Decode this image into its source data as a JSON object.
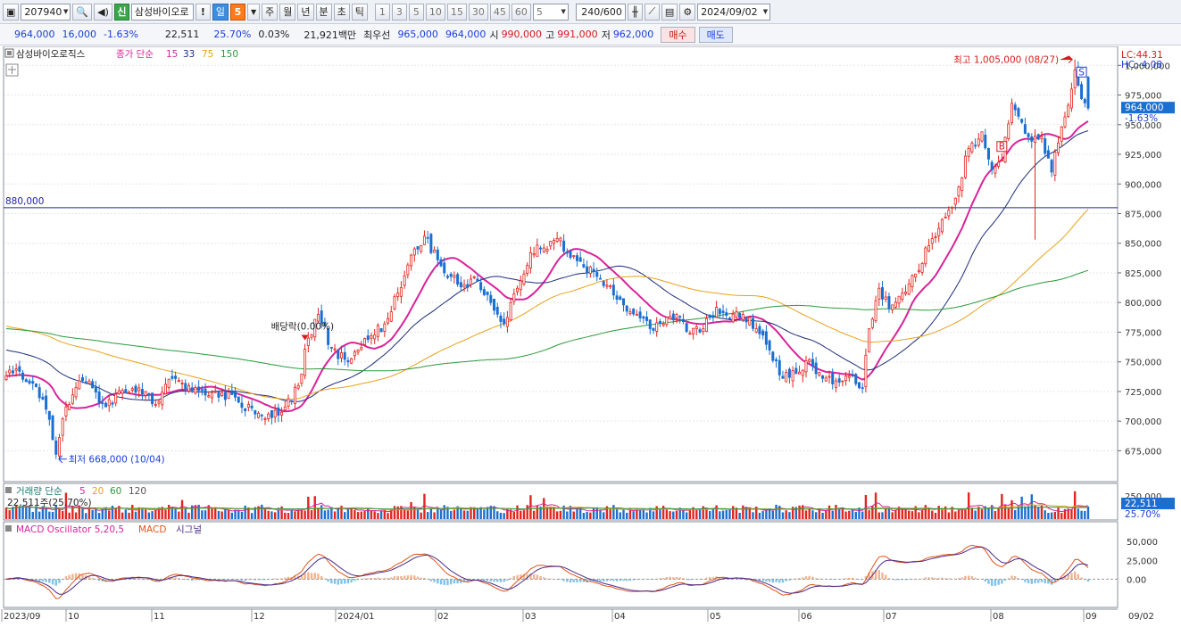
{
  "toolbar": {
    "code": "207940",
    "search_icon": "magnifier-icon",
    "speaker_icon": "speaker-icon",
    "shin_badge": "신",
    "stock_name": "삼성바이오로",
    "bang_label": "!",
    "period_day": "일",
    "period_num": "5",
    "period_buttons": [
      "주",
      "월",
      "년",
      "분",
      "초",
      "틱"
    ],
    "minute_buttons": [
      "1",
      "3",
      "5",
      "10",
      "15",
      "30",
      "45",
      "60"
    ],
    "interval_value": "5",
    "count_value": "240",
    "count_total": "/600",
    "date_value": "2024/09/02"
  },
  "quote": {
    "price": "964,000",
    "change": "16,000",
    "change_pct": "-1.63%",
    "volume": "22,511",
    "volume_ratio": "25.70%",
    "turnover": "0.03%",
    "amount": "21,921백만",
    "best_label": "최우선",
    "ask": "965,000",
    "bid": "964,000",
    "open_label": "시",
    "open": "990,000",
    "high_label": "고",
    "high": "991,000",
    "low_label": "저",
    "low": "962,000",
    "buy_label": "매수",
    "sell_label": "매도"
  },
  "legend": {
    "name": "삼성바이오로직스",
    "ma_label": "종가 단순",
    "ma_periods": [
      "15",
      "33",
      "75",
      "150"
    ],
    "volume_title": "거래량 단순",
    "volume_periods": [
      "5",
      "20",
      "60",
      "120"
    ],
    "volume_info": "22,511주(25.70%)",
    "macd_title": "MACD Oscillator 5,20,5",
    "macd_label": "MACD",
    "signal_label": "시그널"
  },
  "annotations": {
    "hline_label": "880,000",
    "high_text": "최고 1,005,000 (08/27)",
    "low_text": "최저 668,000 (10/04)",
    "dividend_text": "배당락(0.00%)",
    "signal_s": "S",
    "signal_b": "B",
    "lc": "LC:44.31",
    "hc": "HC:-4.08",
    "price_box": "964,000",
    "price_pct": "-1.63%",
    "vol_box": "22,511",
    "vol_pct": "25.70%",
    "vol_axis_top": "250,000",
    "right_date": "09/02"
  },
  "colors": {
    "up": "#e4241d",
    "down": "#1b6fd1",
    "ma15": "#d8239a",
    "ma33": "#1c2d7a",
    "ma75": "#e8a21a",
    "ma150": "#2a9a3a",
    "hline": "#2020b0",
    "macd": "#e0541a",
    "signal": "#4a2a8a"
  },
  "chart_data": {
    "type": "candlestick",
    "y_axis": {
      "range": [
        655000,
        1010000
      ],
      "ticks": [
        "1,000,000",
        "975,000",
        "950,000",
        "925,000",
        "900,000",
        "875,000",
        "850,000",
        "825,000",
        "800,000",
        "775,000",
        "750,000",
        "725,000",
        "700,000",
        "675,000"
      ]
    },
    "x_axis": {
      "labels": [
        "2023/09",
        "10",
        "11",
        "12",
        "2024/01",
        "02",
        "03",
        "04",
        "05",
        "06",
        "07",
        "08",
        "09"
      ]
    },
    "close_anchors": [
      [
        0,
        738000
      ],
      [
        4,
        742000
      ],
      [
        8,
        732000
      ],
      [
        12,
        710000
      ],
      [
        15,
        672000
      ],
      [
        18,
        712000
      ],
      [
        22,
        734000
      ],
      [
        26,
        728000
      ],
      [
        30,
        712000
      ],
      [
        35,
        726000
      ],
      [
        40,
        728000
      ],
      [
        45,
        714000
      ],
      [
        50,
        736000
      ],
      [
        55,
        730000
      ],
      [
        60,
        722000
      ],
      [
        65,
        724000
      ],
      [
        70,
        716000
      ],
      [
        75,
        706000
      ],
      [
        80,
        703000
      ],
      [
        84,
        712000
      ],
      [
        88,
        730000
      ],
      [
        91,
        770000
      ],
      [
        94,
        790000
      ],
      [
        98,
        762000
      ],
      [
        102,
        752000
      ],
      [
        106,
        760000
      ],
      [
        110,
        772000
      ],
      [
        114,
        782000
      ],
      [
        118,
        808000
      ],
      [
        122,
        840000
      ],
      [
        126,
        856000
      ],
      [
        130,
        836000
      ],
      [
        134,
        822000
      ],
      [
        138,
        815000
      ],
      [
        142,
        818000
      ],
      [
        146,
        800000
      ],
      [
        150,
        782000
      ],
      [
        154,
        812000
      ],
      [
        158,
        842000
      ],
      [
        162,
        846000
      ],
      [
        166,
        854000
      ],
      [
        170,
        838000
      ],
      [
        174,
        830000
      ],
      [
        178,
        822000
      ],
      [
        182,
        814000
      ],
      [
        186,
        798000
      ],
      [
        190,
        790000
      ],
      [
        194,
        778000
      ],
      [
        198,
        782000
      ],
      [
        202,
        790000
      ],
      [
        206,
        774000
      ],
      [
        210,
        778000
      ],
      [
        214,
        796000
      ],
      [
        218,
        786000
      ],
      [
        222,
        790000
      ],
      [
        226,
        778000
      ],
      [
        230,
        760000
      ],
      [
        234,
        736000
      ],
      [
        238,
        740000
      ],
      [
        242,
        752000
      ],
      [
        246,
        736000
      ],
      [
        250,
        734000
      ],
      [
        254,
        738000
      ],
      [
        258,
        728000
      ],
      [
        260,
        778000
      ],
      [
        263,
        812000
      ],
      [
        266,
        795000
      ],
      [
        270,
        808000
      ],
      [
        274,
        824000
      ],
      [
        278,
        848000
      ],
      [
        282,
        870000
      ],
      [
        286,
        888000
      ],
      [
        290,
        930000
      ],
      [
        294,
        944000
      ],
      [
        297,
        912000
      ],
      [
        300,
        920000
      ],
      [
        303,
        968000
      ],
      [
        306,
        952000
      ],
      [
        309,
        936000
      ],
      [
        312,
        940000
      ],
      [
        315,
        910000
      ],
      [
        318,
        948000
      ],
      [
        321,
        980000
      ],
      [
        322,
        996000
      ],
      [
        324,
        972000
      ],
      [
        326,
        964000
      ]
    ],
    "ma_periods": [
      15,
      33,
      75,
      150
    ],
    "annotation_levels": {
      "hline": 880000,
      "high": 1005000,
      "low": 668000
    },
    "macd_axis": {
      "range": [
        -35000,
        68000
      ],
      "ticks": [
        "50,000",
        "25,000",
        "0.00"
      ]
    },
    "volume_axis": {
      "ticks": [
        "250,000"
      ]
    }
  }
}
